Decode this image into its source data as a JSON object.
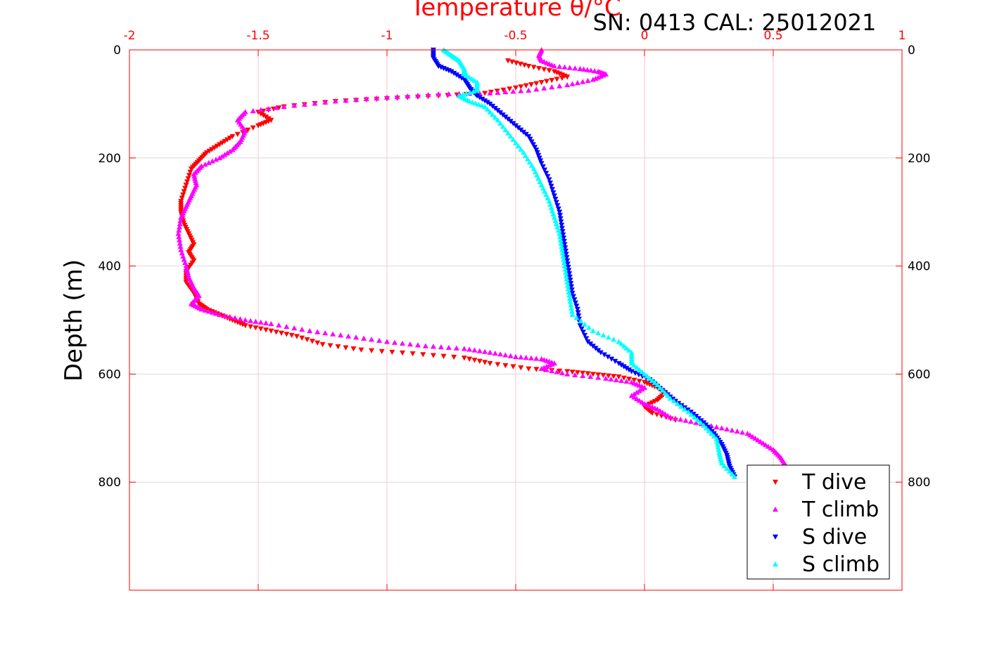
{
  "chart_data": {
    "type": "scatter",
    "title": "SN: 0413  CAL: 25012021",
    "xlabel": "Temperature θ/°C",
    "ylabel": "Depth (m)",
    "xlim": [
      -2,
      1
    ],
    "ylim": [
      1000,
      0
    ],
    "x_axis_position": "top",
    "y_axis_reversed": true,
    "grid": true,
    "x_ticks": [
      "-2",
      "-1.5",
      "-1",
      "-0.5",
      "0",
      "0.5",
      "1"
    ],
    "x_tick_values": [
      -2,
      -1.5,
      -1,
      -0.5,
      0,
      0.5,
      1
    ],
    "y_ticks": [
      "0",
      "200",
      "400",
      "600",
      "800"
    ],
    "y_tick_values": [
      0,
      200,
      400,
      600,
      800
    ],
    "legend_position": "bottom-right",
    "colors": {
      "axis": "#ff0000",
      "grid": "#ffc0cb",
      "grid_h": "#d9d9d9"
    },
    "series": [
      {
        "name": "T dive",
        "color": "#ff0000",
        "marker": "triangle-down",
        "points": [
          [
            -0.53,
            20
          ],
          [
            -0.45,
            30
          ],
          [
            -0.35,
            40
          ],
          [
            -0.3,
            50
          ],
          [
            -0.4,
            60
          ],
          [
            -0.5,
            70
          ],
          [
            -0.62,
            80
          ],
          [
            -0.8,
            85
          ],
          [
            -1.0,
            90
          ],
          [
            -1.2,
            95
          ],
          [
            -1.4,
            105
          ],
          [
            -1.5,
            115
          ],
          [
            -1.45,
            130
          ],
          [
            -1.5,
            140
          ],
          [
            -1.6,
            160
          ],
          [
            -1.65,
            175
          ],
          [
            -1.7,
            190
          ],
          [
            -1.73,
            205
          ],
          [
            -1.76,
            220
          ],
          [
            -1.78,
            250
          ],
          [
            -1.8,
            280
          ],
          [
            -1.8,
            300
          ],
          [
            -1.79,
            320
          ],
          [
            -1.77,
            340
          ],
          [
            -1.75,
            360
          ],
          [
            -1.77,
            375
          ],
          [
            -1.75,
            390
          ],
          [
            -1.78,
            410
          ],
          [
            -1.78,
            430
          ],
          [
            -1.75,
            450
          ],
          [
            -1.73,
            470
          ],
          [
            -1.7,
            480
          ],
          [
            -1.65,
            490
          ],
          [
            -1.6,
            500
          ],
          [
            -1.55,
            510
          ],
          [
            -1.45,
            520
          ],
          [
            -1.35,
            530
          ],
          [
            -1.25,
            545
          ],
          [
            -1.1,
            555
          ],
          [
            -0.9,
            562
          ],
          [
            -0.7,
            570
          ],
          [
            -0.6,
            580
          ],
          [
            -0.45,
            590
          ],
          [
            -0.3,
            595
          ],
          [
            -0.2,
            600
          ],
          [
            -0.1,
            605
          ],
          [
            0.0,
            615
          ],
          [
            0.05,
            625
          ],
          [
            0.08,
            635
          ],
          [
            0.05,
            648
          ],
          [
            0.0,
            660
          ],
          [
            0.03,
            672
          ],
          [
            0.12,
            685
          ]
        ]
      },
      {
        "name": "T climb",
        "color": "#ff00ff",
        "marker": "triangle-up",
        "points": [
          [
            -0.4,
            0
          ],
          [
            -0.41,
            10
          ],
          [
            -0.4,
            20
          ],
          [
            -0.35,
            30
          ],
          [
            -0.25,
            35
          ],
          [
            -0.18,
            40
          ],
          [
            -0.15,
            45
          ],
          [
            -0.2,
            55
          ],
          [
            -0.3,
            65
          ],
          [
            -0.45,
            75
          ],
          [
            -0.6,
            80
          ],
          [
            -0.8,
            82
          ],
          [
            -1.0,
            88
          ],
          [
            -1.2,
            95
          ],
          [
            -1.4,
            105
          ],
          [
            -1.55,
            115
          ],
          [
            -1.58,
            130
          ],
          [
            -1.55,
            150
          ],
          [
            -1.57,
            170
          ],
          [
            -1.6,
            185
          ],
          [
            -1.65,
            200
          ],
          [
            -1.72,
            215
          ],
          [
            -1.75,
            230
          ],
          [
            -1.74,
            250
          ],
          [
            -1.76,
            270
          ],
          [
            -1.78,
            290
          ],
          [
            -1.8,
            310
          ],
          [
            -1.81,
            340
          ],
          [
            -1.8,
            370
          ],
          [
            -1.78,
            400
          ],
          [
            -1.77,
            420
          ],
          [
            -1.75,
            440
          ],
          [
            -1.73,
            455
          ],
          [
            -1.76,
            470
          ],
          [
            -1.72,
            480
          ],
          [
            -1.65,
            490
          ],
          [
            -1.55,
            500
          ],
          [
            -1.45,
            507
          ],
          [
            -1.3,
            520
          ],
          [
            -1.15,
            530
          ],
          [
            -1.0,
            540
          ],
          [
            -0.85,
            548
          ],
          [
            -0.7,
            553
          ],
          [
            -0.6,
            560
          ],
          [
            -0.5,
            568
          ],
          [
            -0.4,
            572
          ],
          [
            -0.35,
            580
          ],
          [
            -0.4,
            590
          ],
          [
            -0.3,
            600
          ],
          [
            -0.15,
            608
          ],
          [
            -0.05,
            615
          ],
          [
            0.0,
            625
          ],
          [
            -0.05,
            640
          ],
          [
            0.0,
            655
          ],
          [
            0.05,
            665
          ],
          [
            0.1,
            680
          ],
          [
            0.2,
            690
          ],
          [
            0.3,
            700
          ],
          [
            0.4,
            710
          ],
          [
            0.45,
            725
          ],
          [
            0.5,
            740
          ],
          [
            0.53,
            755
          ],
          [
            0.55,
            770
          ]
        ]
      },
      {
        "name": "S dive",
        "color": "#0000ff",
        "marker": "triangle-down",
        "points": [
          [
            -0.82,
            0
          ],
          [
            -0.82,
            15
          ],
          [
            -0.8,
            30
          ],
          [
            -0.75,
            40
          ],
          [
            -0.7,
            55
          ],
          [
            -0.68,
            70
          ],
          [
            -0.65,
            85
          ],
          [
            -0.6,
            100
          ],
          [
            -0.55,
            120
          ],
          [
            -0.5,
            140
          ],
          [
            -0.45,
            160
          ],
          [
            -0.42,
            185
          ],
          [
            -0.4,
            210
          ],
          [
            -0.37,
            240
          ],
          [
            -0.35,
            270
          ],
          [
            -0.33,
            300
          ],
          [
            -0.32,
            330
          ],
          [
            -0.31,
            360
          ],
          [
            -0.3,
            390
          ],
          [
            -0.29,
            420
          ],
          [
            -0.28,
            450
          ],
          [
            -0.26,
            480
          ],
          [
            -0.25,
            510
          ],
          [
            -0.22,
            540
          ],
          [
            -0.17,
            560
          ],
          [
            -0.1,
            580
          ],
          [
            -0.05,
            595
          ],
          [
            0.02,
            610
          ],
          [
            0.07,
            630
          ],
          [
            0.12,
            650
          ],
          [
            0.18,
            670
          ],
          [
            0.23,
            690
          ],
          [
            0.27,
            710
          ],
          [
            0.3,
            730
          ],
          [
            0.32,
            750
          ],
          [
            0.33,
            770
          ],
          [
            0.35,
            790
          ]
        ]
      },
      {
        "name": "S climb",
        "color": "#00ffff",
        "marker": "triangle-up",
        "points": [
          [
            -0.78,
            0
          ],
          [
            -0.75,
            10
          ],
          [
            -0.72,
            20
          ],
          [
            -0.7,
            35
          ],
          [
            -0.7,
            45
          ],
          [
            -0.65,
            60
          ],
          [
            -0.65,
            75
          ],
          [
            -0.72,
            85
          ],
          [
            -0.68,
            95
          ],
          [
            -0.62,
            105
          ],
          [
            -0.57,
            130
          ],
          [
            -0.52,
            160
          ],
          [
            -0.47,
            190
          ],
          [
            -0.43,
            220
          ],
          [
            -0.4,
            250
          ],
          [
            -0.37,
            280
          ],
          [
            -0.35,
            310
          ],
          [
            -0.33,
            340
          ],
          [
            -0.32,
            370
          ],
          [
            -0.31,
            400
          ],
          [
            -0.3,
            430
          ],
          [
            -0.29,
            460
          ],
          [
            -0.28,
            490
          ],
          [
            -0.2,
            520
          ],
          [
            -0.1,
            540
          ],
          [
            -0.05,
            560
          ],
          [
            -0.05,
            580
          ],
          [
            0.0,
            600
          ],
          [
            0.05,
            620
          ],
          [
            0.1,
            645
          ],
          [
            0.17,
            670
          ],
          [
            0.23,
            695
          ],
          [
            0.28,
            720
          ],
          [
            0.29,
            745
          ],
          [
            0.3,
            765
          ],
          [
            0.35,
            790
          ]
        ]
      }
    ]
  }
}
